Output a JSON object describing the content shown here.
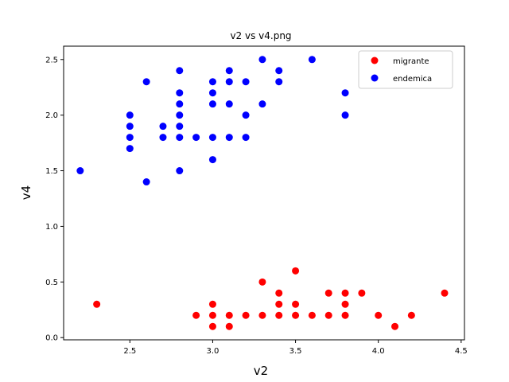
{
  "chart_data": {
    "type": "scatter",
    "title": "v2 vs v4.png",
    "xlabel": "v2",
    "ylabel": "v4",
    "xlim": [
      2.1,
      4.52
    ],
    "ylim": [
      -0.02,
      2.62
    ],
    "xticks": [
      2.5,
      3.0,
      3.5,
      4.0,
      4.5
    ],
    "xtick_labels": [
      "2.5",
      "3.0",
      "3.5",
      "4.0",
      "4.5"
    ],
    "yticks": [
      0.0,
      0.5,
      1.0,
      1.5,
      2.0,
      2.5
    ],
    "ytick_labels": [
      "0.0",
      "0.5",
      "1.0",
      "1.5",
      "2.0",
      "2.5"
    ],
    "grid": false,
    "legend_position": "top-right",
    "series": [
      {
        "name": "migrante",
        "color": "#ff0000",
        "points": [
          [
            2.3,
            0.3
          ],
          [
            2.9,
            0.2
          ],
          [
            3.0,
            0.1
          ],
          [
            3.0,
            0.2
          ],
          [
            3.0,
            0.3
          ],
          [
            3.1,
            0.1
          ],
          [
            3.1,
            0.2
          ],
          [
            3.2,
            0.2
          ],
          [
            3.3,
            0.2
          ],
          [
            3.3,
            0.5
          ],
          [
            3.4,
            0.2
          ],
          [
            3.4,
            0.3
          ],
          [
            3.4,
            0.4
          ],
          [
            3.5,
            0.2
          ],
          [
            3.5,
            0.3
          ],
          [
            3.5,
            0.6
          ],
          [
            3.6,
            0.2
          ],
          [
            3.7,
            0.2
          ],
          [
            3.7,
            0.4
          ],
          [
            3.8,
            0.2
          ],
          [
            3.8,
            0.3
          ],
          [
            3.8,
            0.4
          ],
          [
            3.9,
            0.4
          ],
          [
            4.0,
            0.2
          ],
          [
            4.1,
            0.1
          ],
          [
            4.2,
            0.2
          ],
          [
            4.4,
            0.4
          ]
        ]
      },
      {
        "name": "endemica",
        "color": "#0000ff",
        "points": [
          [
            2.2,
            1.5
          ],
          [
            2.5,
            1.7
          ],
          [
            2.5,
            1.8
          ],
          [
            2.5,
            1.9
          ],
          [
            2.5,
            2.0
          ],
          [
            2.6,
            1.4
          ],
          [
            2.6,
            2.3
          ],
          [
            2.7,
            1.8
          ],
          [
            2.7,
            1.9
          ],
          [
            2.8,
            1.5
          ],
          [
            2.8,
            1.8
          ],
          [
            2.8,
            1.9
          ],
          [
            2.8,
            2.0
          ],
          [
            2.8,
            2.1
          ],
          [
            2.8,
            2.2
          ],
          [
            2.8,
            2.4
          ],
          [
            2.9,
            1.8
          ],
          [
            3.0,
            1.6
          ],
          [
            3.0,
            1.8
          ],
          [
            3.0,
            2.1
          ],
          [
            3.0,
            2.2
          ],
          [
            3.0,
            2.3
          ],
          [
            3.1,
            1.8
          ],
          [
            3.1,
            2.1
          ],
          [
            3.1,
            2.3
          ],
          [
            3.1,
            2.4
          ],
          [
            3.2,
            1.8
          ],
          [
            3.2,
            2.0
          ],
          [
            3.2,
            2.3
          ],
          [
            3.3,
            2.1
          ],
          [
            3.3,
            2.5
          ],
          [
            3.4,
            2.3
          ],
          [
            3.4,
            2.4
          ],
          [
            3.6,
            2.5
          ],
          [
            3.8,
            2.0
          ],
          [
            3.8,
            2.2
          ]
        ]
      }
    ]
  }
}
